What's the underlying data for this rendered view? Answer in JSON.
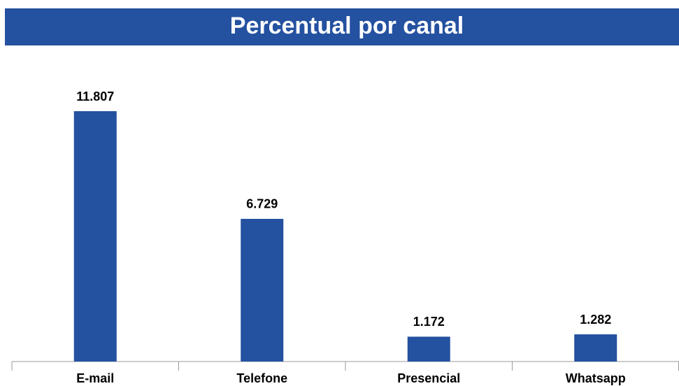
{
  "chart_data": {
    "type": "bar",
    "title": "Percentual por canal",
    "categories": [
      "E-mail",
      "Telefone",
      "Presencial",
      "Whatsapp"
    ],
    "values": [
      11807,
      6729,
      1172,
      1282
    ],
    "value_labels": [
      "11.807",
      "6.729",
      "1.172",
      "1.282"
    ],
    "color": "#2451a0"
  }
}
